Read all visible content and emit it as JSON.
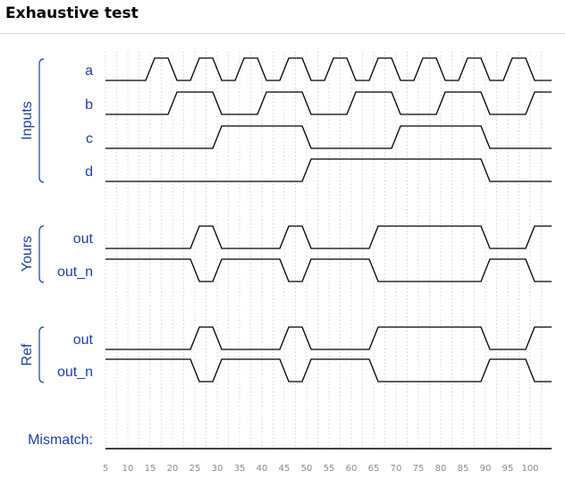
{
  "header": {
    "title": "Exhaustive test"
  },
  "colors": {
    "label": "#1a3fb0",
    "wave": "#000000",
    "grid": "#c8c8c8",
    "tick": "#8a8a8a"
  },
  "chart_data": {
    "type": "timing-diagram",
    "time_range": [
      5,
      105
    ],
    "ticks": [
      5,
      10,
      15,
      20,
      25,
      30,
      35,
      40,
      45,
      50,
      55,
      60,
      65,
      70,
      75,
      80,
      85,
      90,
      95,
      100
    ],
    "groups": [
      {
        "label": "Inputs",
        "signals": [
          {
            "name": "a",
            "initial": 0,
            "edges": [
              15,
              20,
              25,
              30,
              35,
              40,
              45,
              50,
              55,
              60,
              65,
              70,
              75,
              80,
              85,
              90,
              95,
              100
            ]
          },
          {
            "name": "b",
            "initial": 0,
            "edges": [
              20,
              30,
              40,
              50,
              60,
              70,
              80,
              90,
              100
            ]
          },
          {
            "name": "c",
            "initial": 0,
            "edges": [
              30,
              50,
              70,
              90
            ]
          },
          {
            "name": "d",
            "initial": 0,
            "edges": [
              50,
              90
            ]
          }
        ]
      },
      {
        "label": "Yours",
        "signals": [
          {
            "name": "out",
            "initial": 0,
            "edges": [
              25,
              30,
              45,
              50,
              65,
              90,
              100
            ]
          },
          {
            "name": "out_n",
            "initial": 1,
            "edges": [
              25,
              30,
              45,
              50,
              65,
              90,
              100
            ]
          }
        ]
      },
      {
        "label": "Ref",
        "signals": [
          {
            "name": "out",
            "initial": 0,
            "edges": [
              25,
              30,
              45,
              50,
              65,
              90,
              100
            ]
          },
          {
            "name": "out_n",
            "initial": 1,
            "edges": [
              25,
              30,
              45,
              50,
              65,
              90,
              100
            ]
          }
        ]
      },
      {
        "label": "",
        "signals": [
          {
            "name": "Mismatch:",
            "initial": 0,
            "edges": []
          }
        ]
      }
    ]
  }
}
